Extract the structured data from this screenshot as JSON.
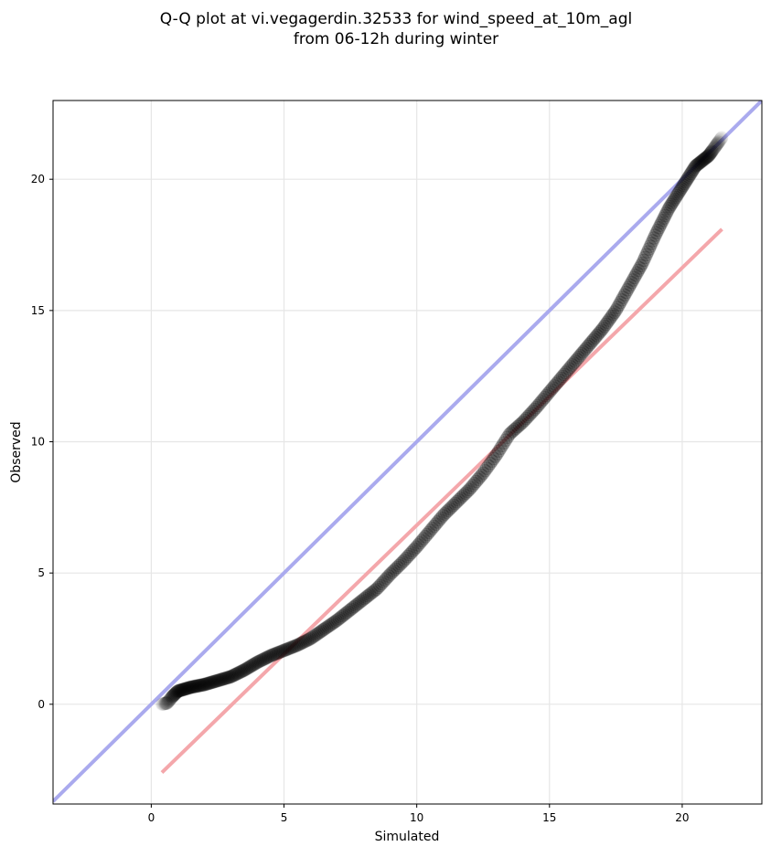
{
  "chart_data": {
    "type": "scatter",
    "title_lines": [
      "Q-Q plot at vi.vegagerdin.32533 for wind_speed_at_10m_agl",
      "from 06-12h during winter"
    ],
    "xlabel": "Simulated",
    "ylabel": "Observed",
    "xlim": [
      -3.7,
      23.0
    ],
    "ylim": [
      -3.8,
      23.0
    ],
    "xticks": [
      0,
      5,
      10,
      15,
      20
    ],
    "yticks": [
      0,
      5,
      10,
      15,
      20
    ],
    "grid": true,
    "colors": {
      "points": "#000000",
      "identity_line": "#aaaaee",
      "fit_line": "#f4a7ab",
      "grid": "#e6e6e6"
    },
    "identity_line": {
      "x": [
        -3.7,
        23.0
      ],
      "y": [
        -3.7,
        23.0
      ]
    },
    "fit_line": {
      "x": [
        0.4,
        21.5
      ],
      "y": [
        -2.6,
        18.1
      ]
    },
    "qq_curve": {
      "x": [
        0.4,
        0.6,
        0.8,
        1.0,
        1.5,
        2.0,
        2.5,
        3.0,
        3.5,
        4.0,
        4.5,
        5.0,
        5.5,
        6.0,
        6.5,
        7.0,
        7.5,
        8.0,
        8.5,
        9.0,
        9.5,
        10.0,
        10.5,
        11.0,
        11.5,
        12.0,
        12.5,
        13.0,
        13.5,
        14.0,
        14.5,
        15.0,
        15.5,
        16.0,
        16.5,
        17.0,
        17.5,
        18.0,
        18.5,
        19.0,
        19.5,
        20.0,
        20.5,
        21.0,
        21.5
      ],
      "y": [
        0.0,
        0.05,
        0.3,
        0.5,
        0.65,
        0.75,
        0.9,
        1.05,
        1.3,
        1.6,
        1.85,
        2.05,
        2.25,
        2.5,
        2.85,
        3.2,
        3.6,
        4.0,
        4.4,
        4.95,
        5.45,
        6.0,
        6.6,
        7.2,
        7.7,
        8.2,
        8.8,
        9.5,
        10.3,
        10.75,
        11.3,
        11.9,
        12.5,
        13.1,
        13.7,
        14.3,
        15.0,
        15.9,
        16.8,
        17.9,
        18.9,
        19.7,
        20.5,
        20.9,
        21.6
      ]
    },
    "n_points": 400
  }
}
